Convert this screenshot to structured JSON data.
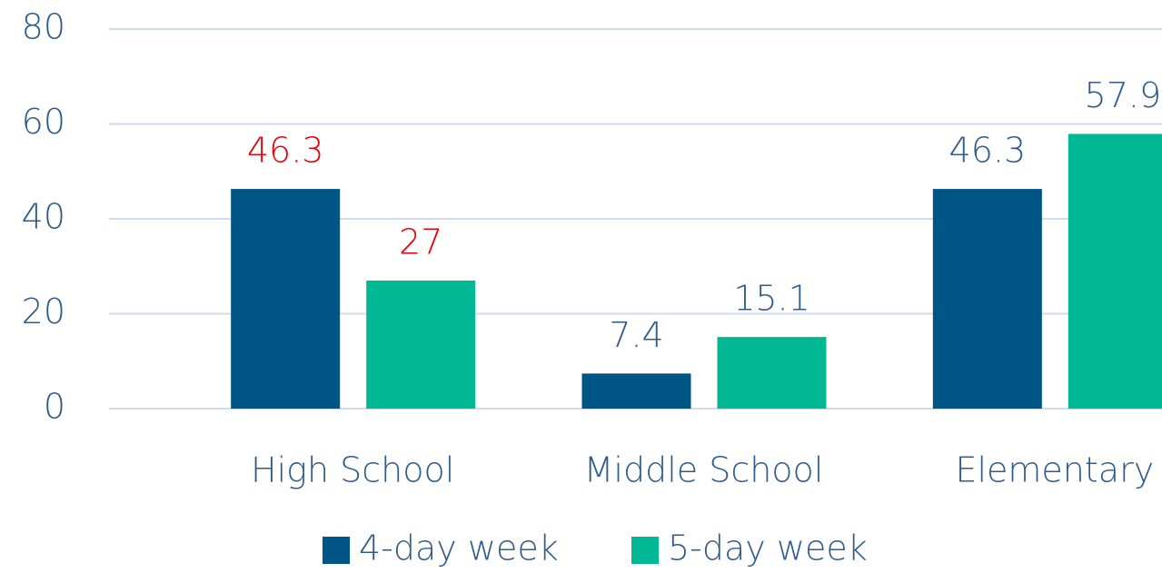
{
  "chart_data": {
    "type": "bar",
    "categories": [
      "High School",
      "Middle School",
      "Elementary"
    ],
    "series": [
      {
        "name": "4-day week",
        "color": "#005587",
        "values": [
          46.3,
          7.4,
          46.3
        ],
        "label_colors": [
          "#e8000b",
          "#2f5b8a",
          "#2f5b8a"
        ]
      },
      {
        "name": "5-day week",
        "color": "#00b894",
        "values": [
          27,
          15.1,
          57.9
        ],
        "label_colors": [
          "#e8000b",
          "#2f5b8a",
          "#2f5b8a"
        ]
      }
    ],
    "ylim": [
      0,
      80
    ],
    "yticks": [
      0,
      20,
      40,
      60,
      80
    ],
    "grid": true,
    "legend": "bottom"
  }
}
